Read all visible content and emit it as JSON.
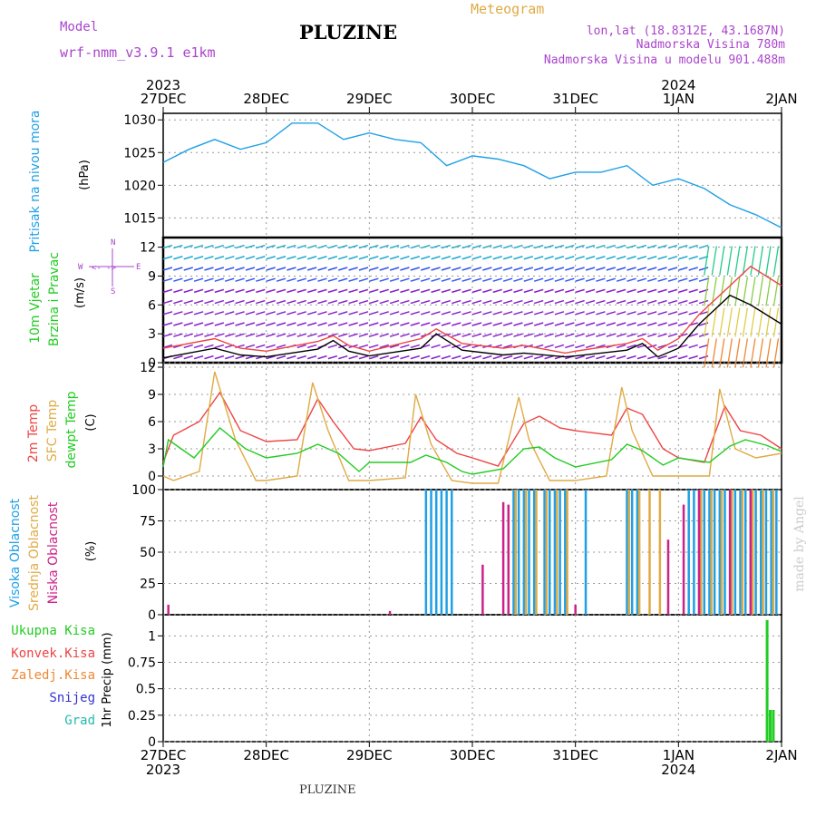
{
  "header": {
    "model_label": "Model",
    "model_name": "wrf-nmm_v3.9.1  e1km",
    "station": "PLUZINE",
    "meteogram_label": "Meteogram",
    "lonlat": "lon,lat (18.8312E, 43.1687N)",
    "elevation": "Nadmorska Visina 780m",
    "model_elevation": "Nadmorska Visina u modelu 901.488m",
    "footer_station": "PLUZINE",
    "credit": "made by Angel"
  },
  "time_axis": {
    "top_years": [
      {
        "label": "2023",
        "at": 0
      },
      {
        "label": "2024",
        "at": 5
      }
    ],
    "bottom_years": [
      {
        "label": "2023",
        "at": 0
      },
      {
        "label": "2024",
        "at": 5
      }
    ],
    "ticks": [
      "27DEC",
      "28DEC",
      "29DEC",
      "30DEC",
      "31DEC",
      "1JAN",
      "2JAN"
    ]
  },
  "panel_labels": {
    "pressure": {
      "title": "Pritisak na nivou mora",
      "unit": "(hPa)"
    },
    "wind": {
      "title1": "10m Vjetar",
      "title2": "Brzina i Pravac",
      "unit": "(m/s)",
      "compass_n": "N",
      "compass_s": "S",
      "compass_e": "E",
      "compass_w": "W"
    },
    "temp": {
      "t2m": "2m Temp",
      "sfc": "SFC Temp",
      "dew": "dewpt Temp",
      "unit": "(C)"
    },
    "cloud": {
      "high": "Visoka Oblacnost",
      "mid": "Srednja Oblacnost",
      "low": "Niska Oblacnost",
      "unit": "(%)"
    },
    "precip": {
      "total": "Ukupna Kisa",
      "conv": "Konvek.Kisa",
      "frozen": "Zaledj.Kisa",
      "snow": "Snijeg",
      "hail": "Grad",
      "unit": "1hr Precip (mm)"
    }
  },
  "colors": {
    "pressure": "#1fa0e6",
    "t2m": "#ee4444",
    "sfc": "#e0aa44",
    "dew": "#22cc22",
    "cloud_high": "#1fa0e6",
    "cloud_mid": "#e0aa44",
    "cloud_low": "#cc2288",
    "precip_total": "#22cc22",
    "wind_speed": "#000000",
    "wind_gust": "#ee4444",
    "label_green": "#22cc22",
    "label_red": "#ee4444",
    "label_orange": "#ee8833",
    "label_blue": "#3333cc",
    "label_teal": "#22bbaa",
    "label_violet": "#aa44cc",
    "label_blue2": "#1fa0e6"
  },
  "chart_data": [
    {
      "type": "line",
      "panel": "pressure",
      "ylim": [
        1012,
        1031
      ],
      "yticks": [
        "1015",
        "1020",
        "1025",
        "1030"
      ],
      "series": [
        {
          "x": [
            0,
            0.25,
            0.5,
            0.75,
            1,
            1.25,
            1.5,
            1.75,
            2,
            2.25,
            2.5,
            2.75,
            3,
            3.25,
            3.5,
            3.75,
            4,
            4.25,
            4.5,
            4.75,
            5,
            5.25,
            5.5,
            5.75,
            6
          ],
          "values": [
            1023.5,
            1025.5,
            1027,
            1025.5,
            1026.5,
            1029.5,
            1029.5,
            1027,
            1028,
            1027,
            1026.5,
            1023,
            1024.5,
            1024,
            1023,
            1021,
            1022,
            1022,
            1023,
            1020,
            1021,
            1019.5,
            1017,
            1015.5,
            1013.5
          ]
        }
      ]
    },
    {
      "type": "line",
      "panel": "wind",
      "ylim": [
        0,
        13
      ],
      "yticks": [
        "0",
        "3",
        "6",
        "9",
        "12"
      ],
      "series": [
        {
          "name": "speed",
          "x": [
            0,
            0.5,
            0.75,
            1,
            1.5,
            1.65,
            1.8,
            2,
            2.5,
            2.65,
            2.9,
            3.3,
            3.5,
            3.9,
            4,
            4.5,
            4.65,
            4.8,
            5,
            5.2,
            5.5,
            5.7,
            6
          ],
          "values": [
            0.5,
            1.5,
            0.8,
            0.6,
            1.4,
            2.3,
            1.2,
            0.7,
            1.5,
            3,
            1.3,
            0.8,
            1,
            0.6,
            0.7,
            1.3,
            2,
            0.6,
            1.5,
            4,
            7,
            6,
            4
          ]
        },
        {
          "name": "gust",
          "x": [
            0,
            0.5,
            0.75,
            1,
            1.5,
            1.65,
            1.8,
            2,
            2.5,
            2.65,
            2.9,
            3.3,
            3.5,
            3.9,
            4,
            4.5,
            4.65,
            4.8,
            5,
            5.2,
            5.5,
            5.7,
            6
          ],
          "values": [
            1.5,
            2.5,
            1.5,
            1.2,
            2.2,
            2.8,
            1.8,
            1.2,
            2.5,
            3.5,
            2,
            1.5,
            1.8,
            1,
            1.2,
            2,
            2.5,
            1.3,
            2.5,
            5,
            8,
            10,
            8
          ]
        }
      ]
    },
    {
      "type": "line",
      "panel": "temp",
      "ylim": [
        -1.5,
        12.5
      ],
      "yticks": [
        "0",
        "3",
        "6",
        "9",
        "12"
      ],
      "series": [
        {
          "name": "2m Temp",
          "x": [
            0,
            0.1,
            0.35,
            0.55,
            0.75,
            1,
            1.3,
            1.5,
            1.65,
            1.85,
            2,
            2.35,
            2.5,
            2.65,
            2.85,
            3,
            3.25,
            3.5,
            3.65,
            3.85,
            4,
            4.35,
            4.5,
            4.65,
            4.85,
            5,
            5.25,
            5.45,
            5.6,
            5.8,
            6
          ],
          "values": [
            1.5,
            4.5,
            6,
            9.2,
            5,
            3.8,
            4,
            8.5,
            6,
            3,
            2.8,
            3.6,
            6.5,
            4,
            2.5,
            2,
            1.1,
            5.8,
            6.6,
            5.3,
            5,
            4.5,
            7.5,
            6.8,
            3,
            2,
            1.5,
            7.7,
            5,
            4.5,
            3
          ]
        },
        {
          "name": "SFC Temp",
          "x": [
            0,
            0.1,
            0.35,
            0.5,
            0.7,
            0.9,
            1,
            1.3,
            1.45,
            1.6,
            1.8,
            2,
            2.35,
            2.45,
            2.6,
            2.8,
            3,
            3.25,
            3.45,
            3.55,
            3.75,
            4,
            4.3,
            4.45,
            4.55,
            4.75,
            5,
            5.3,
            5.4,
            5.55,
            5.75,
            6
          ],
          "values": [
            0,
            -0.5,
            0.5,
            11.5,
            4,
            -0.5,
            -0.5,
            0,
            10.3,
            5,
            -0.5,
            -0.5,
            -0.2,
            9,
            3.5,
            -0.5,
            -0.8,
            -0.8,
            8.7,
            4,
            -0.5,
            -0.5,
            0,
            9.8,
            5,
            0,
            0,
            0,
            9.6,
            3,
            2,
            2.5
          ]
        },
        {
          "name": "dewpt Temp",
          "x": [
            0,
            0.05,
            0.3,
            0.55,
            0.8,
            1,
            1.3,
            1.5,
            1.7,
            1.9,
            2,
            2.4,
            2.55,
            2.75,
            2.9,
            3,
            3.3,
            3.5,
            3.65,
            3.8,
            4,
            4.35,
            4.5,
            4.65,
            4.85,
            5,
            5.3,
            5.5,
            5.65,
            5.85,
            6
          ],
          "values": [
            1,
            4,
            2,
            5.3,
            3,
            2,
            2.5,
            3.5,
            2.5,
            0.5,
            1.5,
            1.5,
            2.3,
            1.5,
            0.5,
            0.2,
            0.8,
            3,
            3.2,
            2,
            1,
            1.8,
            3.5,
            2.8,
            1.2,
            2,
            1.5,
            3.3,
            4,
            3.4,
            2.7
          ]
        }
      ]
    },
    {
      "type": "bar",
      "panel": "cloud",
      "ylim": [
        0,
        100
      ],
      "yticks": [
        "0",
        "25",
        "50",
        "75",
        "100"
      ],
      "series": [
        {
          "name": "high",
          "x": [
            2.55,
            2.6,
            2.65,
            2.7,
            2.75,
            2.8,
            3.4,
            3.45,
            3.5,
            3.55,
            3.6,
            3.7,
            3.75,
            3.8,
            3.85,
            3.9,
            4.1,
            4.5,
            4.55,
            4.6,
            5.1,
            5.15,
            5.2,
            5.25,
            5.3,
            5.35,
            5.4,
            5.45,
            5.5,
            5.55,
            5.6,
            5.65,
            5.7,
            5.75,
            5.8,
            5.85,
            5.9,
            5.95
          ],
          "values": [
            100,
            100,
            100,
            100,
            100,
            100,
            100,
            100,
            100,
            100,
            100,
            100,
            100,
            100,
            100,
            100,
            100,
            100,
            100,
            100,
            100,
            100,
            100,
            100,
            100,
            100,
            100,
            100,
            100,
            100,
            100,
            100,
            100,
            100,
            100,
            100,
            100,
            100
          ]
        },
        {
          "name": "mid",
          "x": [
            3.42,
            3.52,
            3.62,
            3.72,
            3.82,
            3.92,
            4.52,
            4.62,
            4.72,
            4.82,
            5.22,
            5.32,
            5.42,
            5.52,
            5.62,
            5.72,
            5.82,
            5.92
          ],
          "values": [
            100,
            100,
            100,
            100,
            100,
            100,
            100,
            100,
            100,
            100,
            100,
            100,
            100,
            100,
            100,
            100,
            100,
            100
          ]
        },
        {
          "name": "low",
          "x": [
            0.05,
            2.2,
            3.1,
            3.3,
            3.35,
            4,
            4.9,
            5.05,
            5.2,
            5.5,
            5.7
          ],
          "values": [
            8,
            3,
            40,
            90,
            88,
            8,
            60,
            88,
            100,
            100,
            100
          ]
        }
      ]
    },
    {
      "type": "bar",
      "panel": "precip",
      "ylim": [
        0,
        1.2
      ],
      "yticks": [
        "0",
        "0.25",
        "0.5",
        "0.75",
        "1"
      ],
      "series": [
        {
          "name": "Ukupna Kisa",
          "x": [
            5.86,
            5.89,
            5.92
          ],
          "values": [
            1.15,
            0.3,
            0.3
          ]
        }
      ]
    }
  ]
}
